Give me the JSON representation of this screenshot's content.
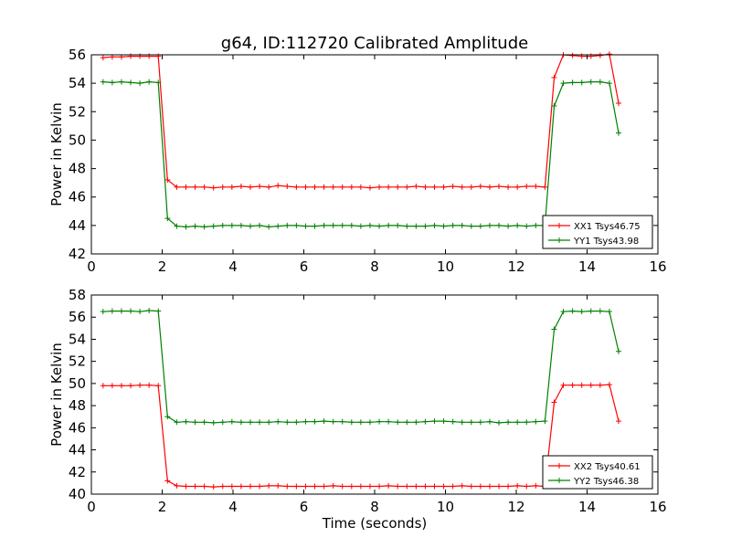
{
  "chart_data": [
    {
      "type": "line",
      "title": "g64, ID:112720 Calibrated Amplitude",
      "xlabel": "",
      "ylabel": "Power in Kelvin",
      "xlim": [
        0,
        16
      ],
      "ylim": [
        42,
        56
      ],
      "xticks": [
        0,
        2,
        4,
        6,
        8,
        10,
        12,
        14,
        16
      ],
      "yticks": [
        42,
        44,
        46,
        48,
        50,
        52,
        54,
        56
      ],
      "grid": false,
      "legend_position": "lower-right",
      "x": [
        0.33,
        0.59,
        0.85,
        1.11,
        1.37,
        1.63,
        1.89,
        2.15,
        2.41,
        2.67,
        2.93,
        3.19,
        3.45,
        3.71,
        3.97,
        4.23,
        4.49,
        4.75,
        5.01,
        5.27,
        5.53,
        5.79,
        6.05,
        6.31,
        6.57,
        6.83,
        7.09,
        7.35,
        7.61,
        7.87,
        8.13,
        8.39,
        8.65,
        8.91,
        9.17,
        9.43,
        9.69,
        9.95,
        10.21,
        10.47,
        10.73,
        10.99,
        11.25,
        11.51,
        11.77,
        12.03,
        12.29,
        12.55,
        12.81,
        13.07,
        13.33,
        13.59,
        13.85,
        14.11,
        14.37,
        14.63,
        14.89
      ],
      "series": [
        {
          "name": "XX1 Tsys46.75",
          "color": "#ff0000",
          "values": [
            55.8,
            55.85,
            55.85,
            55.9,
            55.9,
            55.9,
            55.9,
            47.2,
            46.7,
            46.7,
            46.7,
            46.7,
            46.65,
            46.7,
            46.7,
            46.75,
            46.7,
            46.75,
            46.7,
            46.8,
            46.75,
            46.7,
            46.7,
            46.7,
            46.7,
            46.7,
            46.7,
            46.7,
            46.7,
            46.65,
            46.7,
            46.7,
            46.7,
            46.7,
            46.75,
            46.7,
            46.7,
            46.7,
            46.75,
            46.7,
            46.7,
            46.75,
            46.7,
            46.75,
            46.7,
            46.7,
            46.75,
            46.75,
            46.7,
            54.4,
            56.0,
            55.95,
            55.9,
            55.9,
            55.95,
            56.05,
            52.6
          ]
        },
        {
          "name": "YY1 Tsys43.98",
          "color": "#008000",
          "values": [
            54.1,
            54.05,
            54.1,
            54.05,
            54.0,
            54.1,
            54.05,
            44.5,
            43.95,
            43.9,
            43.95,
            43.9,
            43.95,
            44.0,
            44.0,
            44.0,
            43.95,
            44.0,
            43.9,
            43.95,
            44.0,
            44.0,
            43.95,
            43.95,
            44.0,
            44.0,
            44.0,
            44.0,
            43.95,
            44.0,
            43.95,
            44.0,
            44.0,
            43.95,
            43.95,
            43.95,
            44.0,
            43.95,
            44.0,
            44.0,
            43.95,
            43.95,
            44.0,
            44.0,
            43.95,
            44.0,
            43.95,
            44.0,
            44.0,
            52.4,
            54.0,
            54.05,
            54.05,
            54.1,
            54.1,
            54.0,
            50.5
          ]
        }
      ]
    },
    {
      "type": "line",
      "title": "",
      "xlabel": "Time (seconds)",
      "ylabel": "Power in Kelvin",
      "xlim": [
        0,
        16
      ],
      "ylim": [
        40,
        58
      ],
      "xticks": [
        0,
        2,
        4,
        6,
        8,
        10,
        12,
        14,
        16
      ],
      "yticks": [
        40,
        42,
        44,
        46,
        48,
        50,
        52,
        54,
        56,
        58
      ],
      "grid": false,
      "legend_position": "lower-right",
      "x": [
        0.33,
        0.59,
        0.85,
        1.11,
        1.37,
        1.63,
        1.89,
        2.15,
        2.41,
        2.67,
        2.93,
        3.19,
        3.45,
        3.71,
        3.97,
        4.23,
        4.49,
        4.75,
        5.01,
        5.27,
        5.53,
        5.79,
        6.05,
        6.31,
        6.57,
        6.83,
        7.09,
        7.35,
        7.61,
        7.87,
        8.13,
        8.39,
        8.65,
        8.91,
        9.17,
        9.43,
        9.69,
        9.95,
        10.21,
        10.47,
        10.73,
        10.99,
        11.25,
        11.51,
        11.77,
        12.03,
        12.29,
        12.55,
        12.81,
        13.07,
        13.33,
        13.59,
        13.85,
        14.11,
        14.37,
        14.63,
        14.89
      ],
      "series": [
        {
          "name": "XX2 Tsys40.61",
          "color": "#ff0000",
          "values": [
            49.8,
            49.8,
            49.8,
            49.8,
            49.85,
            49.85,
            49.8,
            41.2,
            40.75,
            40.7,
            40.7,
            40.7,
            40.65,
            40.7,
            40.7,
            40.7,
            40.7,
            40.7,
            40.75,
            40.75,
            40.7,
            40.7,
            40.7,
            40.7,
            40.7,
            40.75,
            40.7,
            40.7,
            40.7,
            40.7,
            40.7,
            40.75,
            40.7,
            40.7,
            40.7,
            40.7,
            40.7,
            40.7,
            40.7,
            40.75,
            40.7,
            40.7,
            40.7,
            40.7,
            40.7,
            40.75,
            40.7,
            40.75,
            40.7,
            48.3,
            49.85,
            49.85,
            49.85,
            49.85,
            49.85,
            49.9,
            46.6
          ]
        },
        {
          "name": "YY2 Tsys46.38",
          "color": "#008000",
          "values": [
            56.5,
            56.55,
            56.55,
            56.55,
            56.5,
            56.6,
            56.55,
            47.0,
            46.5,
            46.55,
            46.5,
            46.5,
            46.45,
            46.5,
            46.55,
            46.5,
            46.5,
            46.5,
            46.5,
            46.55,
            46.5,
            46.5,
            46.55,
            46.55,
            46.6,
            46.55,
            46.55,
            46.5,
            46.5,
            46.5,
            46.55,
            46.55,
            46.5,
            46.5,
            46.5,
            46.55,
            46.6,
            46.6,
            46.55,
            46.5,
            46.5,
            46.5,
            46.55,
            46.45,
            46.5,
            46.5,
            46.5,
            46.55,
            46.6,
            54.9,
            56.5,
            56.55,
            56.5,
            56.55,
            56.55,
            56.5,
            52.9
          ]
        }
      ]
    }
  ]
}
